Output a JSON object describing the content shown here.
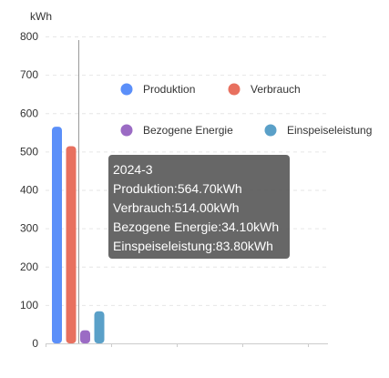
{
  "chart_data": {
    "type": "bar",
    "unit_label": "kWh",
    "ylim": [
      0,
      800
    ],
    "y_ticks": [
      0,
      100,
      200,
      300,
      400,
      500,
      600,
      700,
      800
    ],
    "categories": [
      "2024-3"
    ],
    "series": [
      {
        "name": "Produktion",
        "values": [
          564.7
        ],
        "color": "#5b8ff9"
      },
      {
        "name": "Verbrauch",
        "values": [
          514.0
        ],
        "color": "#e8705f"
      },
      {
        "name": "Bezogene Energie",
        "values": [
          34.1
        ],
        "color": "#9b6bc4"
      },
      {
        "name": "Einspeiseleistung",
        "values": [
          83.8
        ],
        "color": "#5aa0c8"
      }
    ],
    "grid": true,
    "legend": "top-right"
  },
  "tooltip": {
    "title": "2024-3",
    "lines": [
      "Produktion:564.70kWh",
      "Verbrauch:514.00kWh",
      "Bezogene Energie:34.10kWh",
      "Einspeiseleistung:83.80kWh"
    ]
  }
}
